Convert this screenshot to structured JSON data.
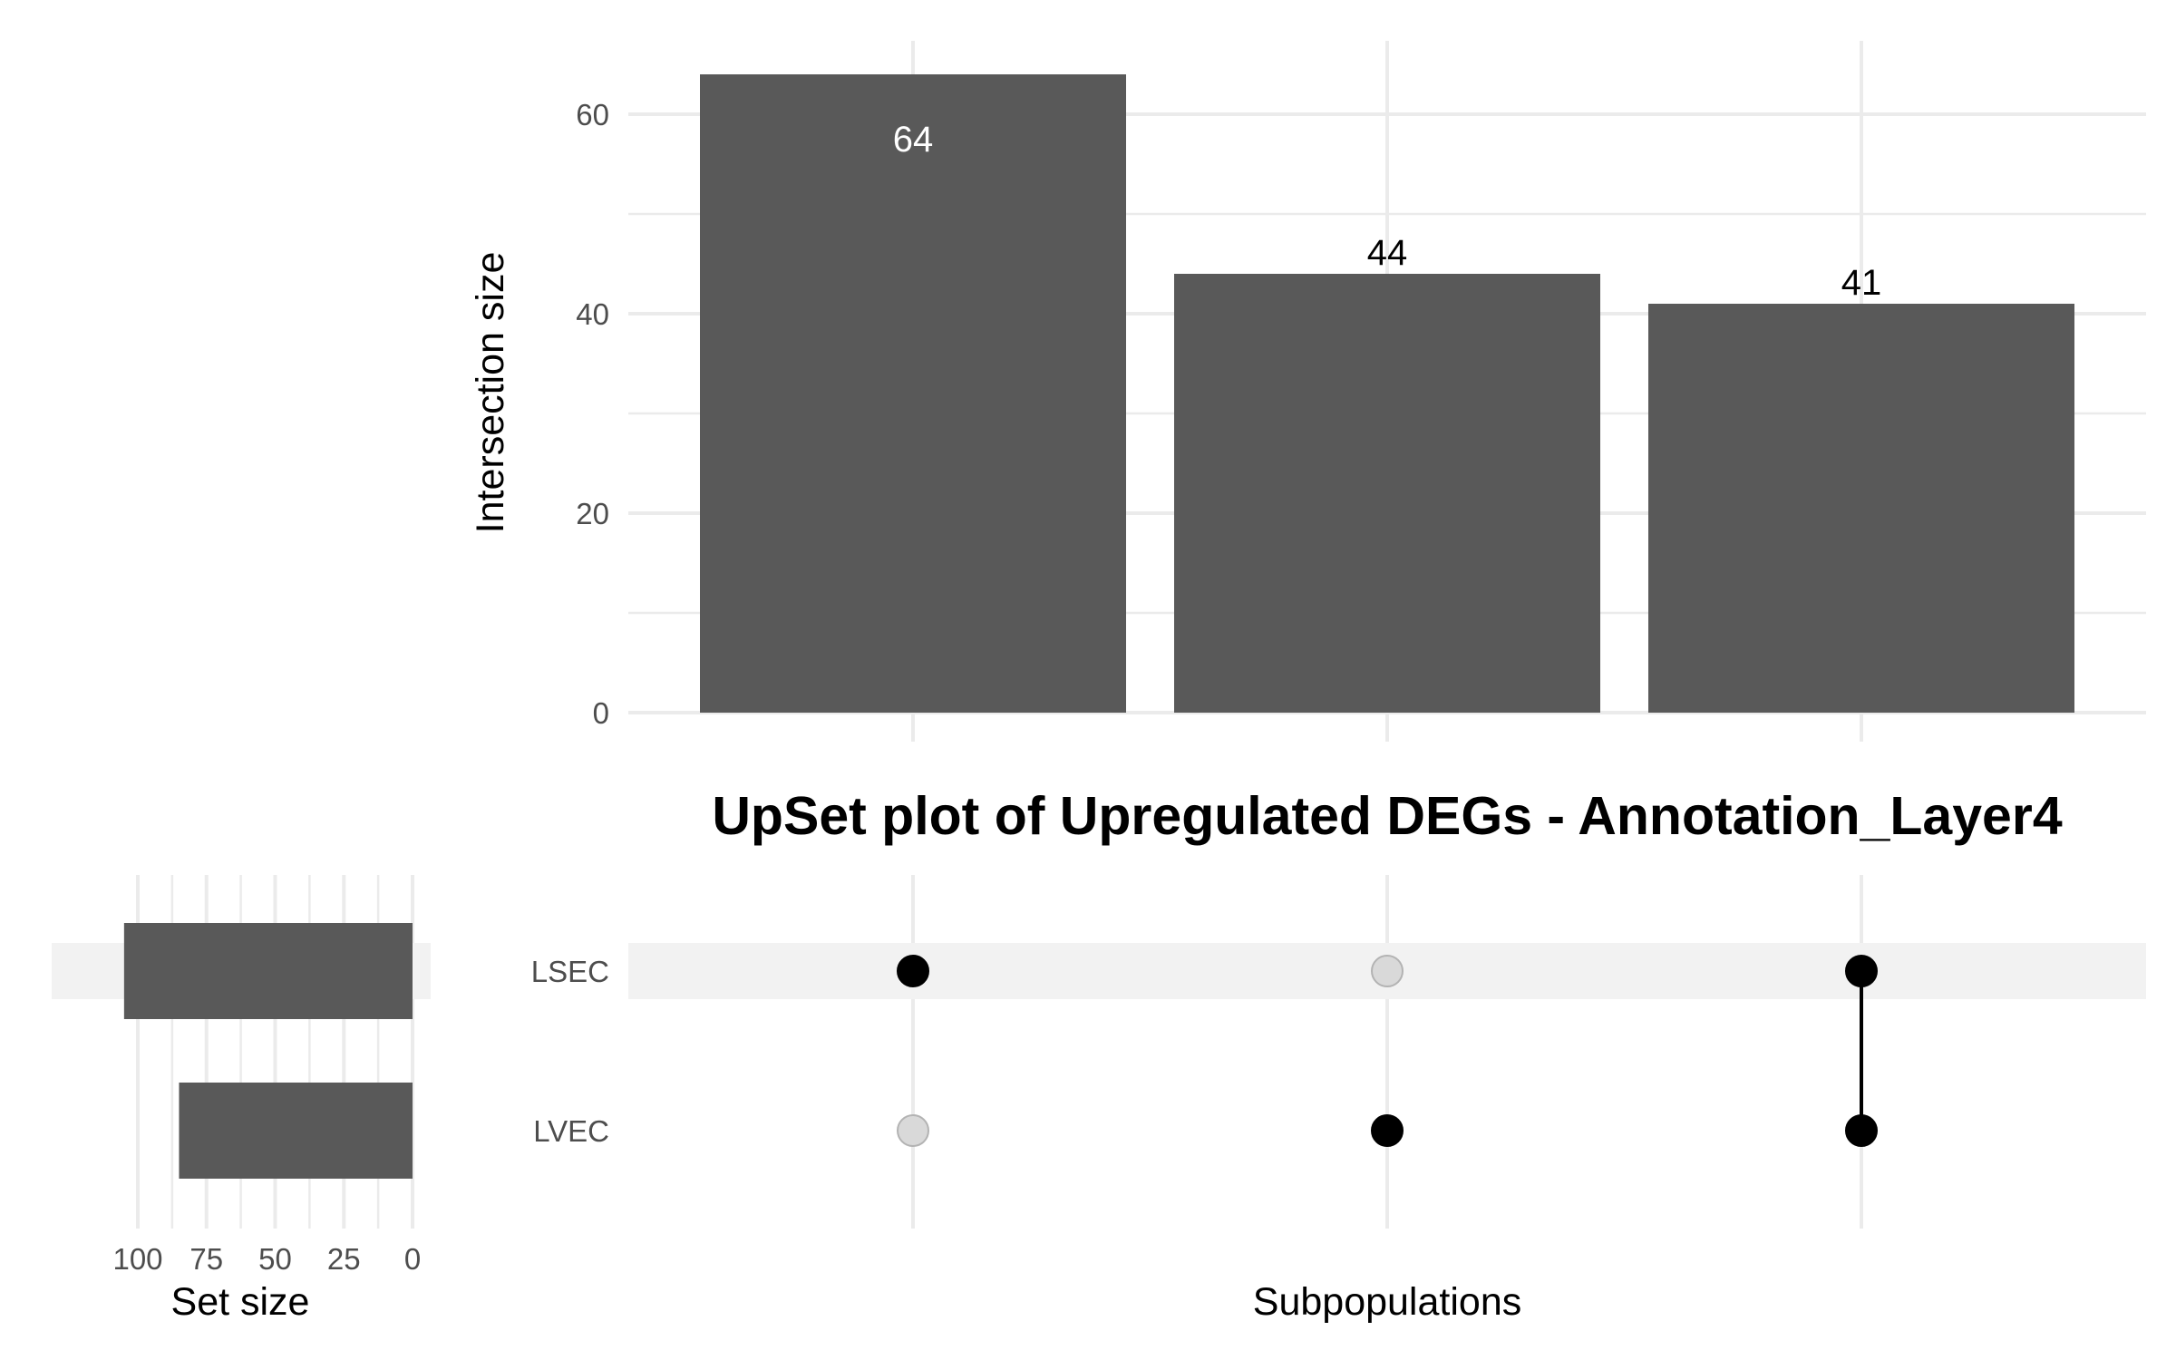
{
  "title": "UpSet plot of Upregulated DEGs - Annotation_Layer4",
  "chart_data": [
    {
      "type": "bar",
      "panel": "intersection",
      "ylabel": "Intersection size",
      "ylim": [
        0,
        67
      ],
      "yticks": [
        0,
        20,
        40,
        60
      ],
      "categories": [
        "LSEC",
        "LVEC",
        "LSEC & LVEC"
      ],
      "values": [
        64,
        44,
        41
      ],
      "value_labels": [
        "64",
        "44",
        "41"
      ],
      "grid": true
    },
    {
      "type": "bar",
      "panel": "set-size",
      "orientation": "horizontal-reversed",
      "xlabel": "Set size",
      "xlim": [
        0,
        107
      ],
      "xticks": [
        0,
        25,
        50,
        75,
        100
      ],
      "tick_labels": [
        "0",
        "25",
        "50",
        "75",
        "100"
      ],
      "sets": [
        "LSEC",
        "LVEC"
      ],
      "values": [
        105,
        85
      ]
    },
    {
      "type": "matrix",
      "panel": "membership",
      "xlabel": "Subpopulations",
      "sets": [
        "LSEC",
        "LVEC"
      ],
      "columns": [
        {
          "LSEC": true,
          "LVEC": false
        },
        {
          "LSEC": false,
          "LVEC": true
        },
        {
          "LSEC": true,
          "LVEC": true
        }
      ]
    }
  ],
  "colors": {
    "bar": "#595959",
    "dot_active": "#000000",
    "dot_inactive": "#d9d9d9",
    "dot_inactive_stroke": "#b3b3b3",
    "grid": "#ebebeb",
    "row_highlight": "#f2f2f2"
  }
}
